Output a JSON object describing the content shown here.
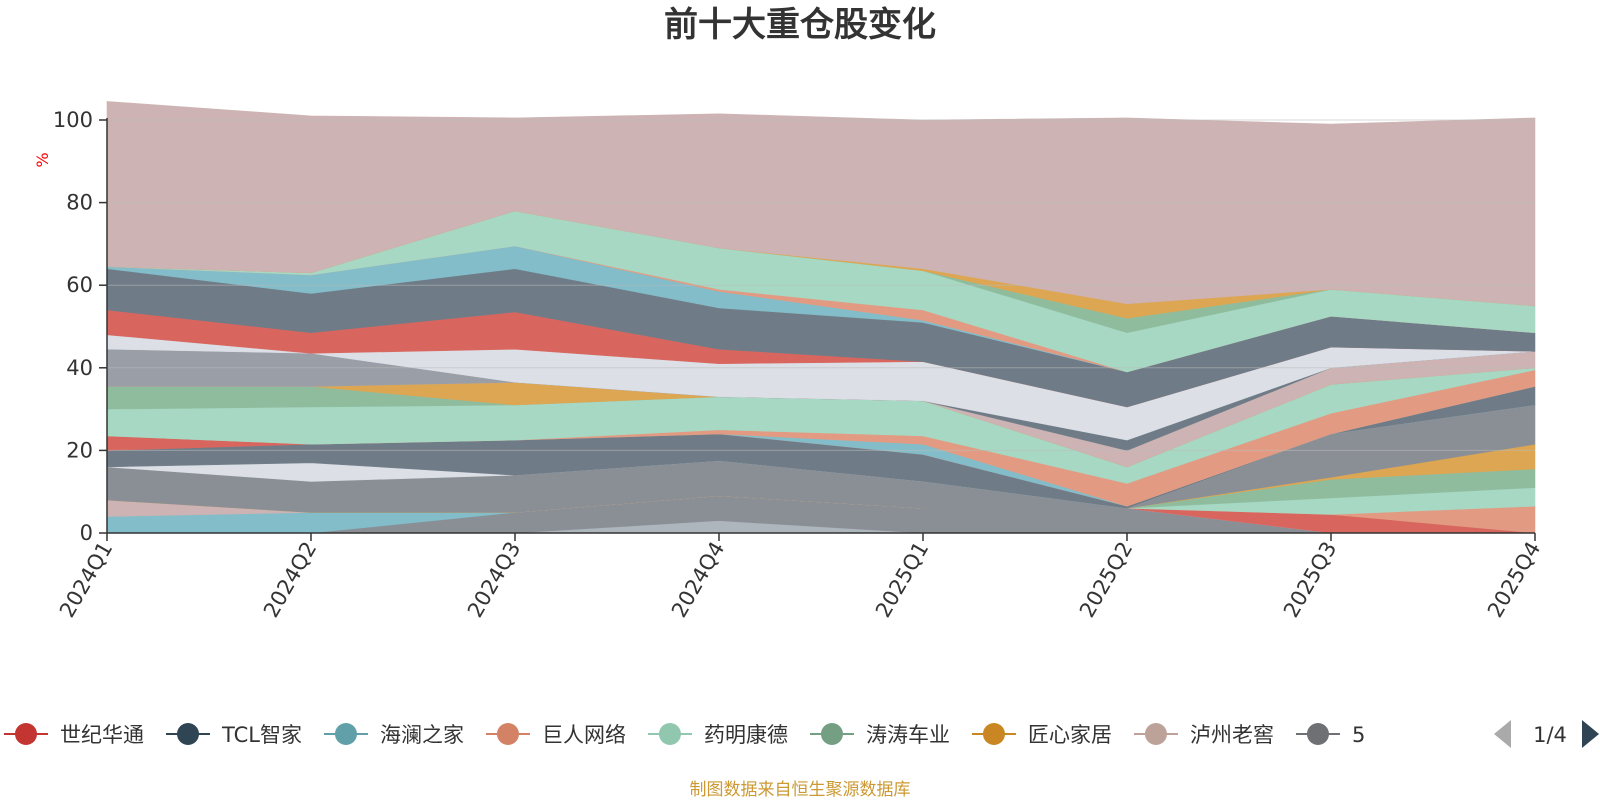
{
  "chart_data": {
    "type": "area",
    "stacked": true,
    "title": "前十大重仓股变化",
    "ylabel": "%",
    "ylim": [
      0,
      100
    ],
    "yticks": [
      0,
      20,
      40,
      60,
      80,
      100
    ],
    "categories": [
      "2024Q1",
      "2024Q2",
      "2024Q3",
      "2024Q4",
      "2025Q1",
      "2025Q2",
      "2025Q3",
      "2025Q4"
    ],
    "grid": true,
    "legend_position": "bottom",
    "series": [
      {
        "color": "#ADB5BD",
        "values": [
          0,
          0,
          0,
          3,
          0,
          0,
          0,
          0
        ]
      },
      {
        "color": "#8A8F96",
        "values": [
          0,
          0,
          5,
          6,
          6,
          6,
          0,
          0
        ]
      },
      {
        "color": "#83BDC9",
        "values": [
          4,
          5,
          0,
          0,
          0,
          0,
          0,
          0
        ]
      },
      {
        "color": "#CDB3B3",
        "values": [
          4,
          0,
          0,
          0,
          0,
          0,
          0,
          0
        ]
      },
      {
        "color": "#D8665E",
        "values": [
          0,
          0,
          0,
          0,
          0,
          0,
          4.5,
          0
        ]
      },
      {
        "color": "#E29B82",
        "values": [
          0,
          0,
          0,
          0,
          0,
          0,
          0,
          6.5
        ]
      },
      {
        "color": "#A6D8C3",
        "values": [
          0,
          0,
          0,
          0,
          0,
          0,
          4,
          4.5
        ]
      },
      {
        "color": "#8FBC9D",
        "values": [
          0,
          0,
          0,
          0,
          0,
          0,
          4.5,
          4.5
        ]
      },
      {
        "color": "#DDA652",
        "values": [
          0,
          0,
          0,
          0,
          0,
          0,
          0.5,
          6
        ]
      },
      {
        "color": "#8A8F96",
        "values": [
          8,
          7.5,
          9,
          8.5,
          6.5,
          0,
          10.5,
          9.5
        ]
      },
      {
        "color": "#DCDFE6",
        "values": [
          0,
          4.5,
          0,
          0,
          0,
          0,
          0,
          0
        ]
      },
      {
        "color": "#6F7C87",
        "values": [
          4,
          4.5,
          8.5,
          6.5,
          6.5,
          0.5,
          0,
          4.5
        ]
      },
      {
        "color": "#D8665E",
        "values": [
          3.5,
          0,
          0,
          0,
          0,
          0,
          0,
          0
        ]
      },
      {
        "color": "#83BDC9",
        "values": [
          0,
          0,
          0,
          0,
          2.5,
          0,
          0,
          0
        ]
      },
      {
        "color": "#E29B82",
        "values": [
          0,
          0,
          0,
          1,
          2,
          5.5,
          5,
          4
        ]
      },
      {
        "color": "#A6D8C3",
        "values": [
          6.5,
          9,
          8.5,
          8,
          8.5,
          4,
          7,
          0.5
        ]
      },
      {
        "color": "#8FBC9D",
        "values": [
          5.5,
          5,
          0,
          0,
          0,
          0,
          0,
          0
        ]
      },
      {
        "color": "#DDA652",
        "values": [
          0,
          0,
          5.5,
          0,
          0,
          0,
          0,
          0
        ]
      },
      {
        "color": "#CDB3B3",
        "values": [
          0,
          0,
          0,
          0,
          0,
          4,
          4,
          4
        ]
      },
      {
        "color": "#9A9EA6",
        "values": [
          9,
          8,
          0,
          0,
          0,
          0,
          0,
          0
        ]
      },
      {
        "color": "#6F7C87",
        "values": [
          0,
          0,
          0,
          0,
          0,
          2.5,
          0,
          0
        ]
      },
      {
        "color": "#DCDFE6",
        "values": [
          3.5,
          0,
          8,
          8,
          9.5,
          8,
          5,
          0
        ]
      },
      {
        "color": "#D8665E",
        "values": [
          6,
          5,
          9,
          3.5,
          0,
          0,
          0,
          0
        ]
      },
      {
        "color": "#6F7C87",
        "values": [
          10,
          9.5,
          10.5,
          10,
          9.5,
          8.5,
          7.5,
          4.5
        ]
      },
      {
        "color": "#83BDC9",
        "values": [
          0.5,
          4.5,
          5.5,
          4,
          0.5,
          0,
          0,
          0
        ]
      },
      {
        "color": "#E29B82",
        "values": [
          0,
          0,
          0,
          0.5,
          2.5,
          0,
          0,
          0
        ]
      },
      {
        "color": "#A6D8C3",
        "values": [
          0,
          0.5,
          8.5,
          10,
          9.5,
          9.5,
          6.5,
          6.5
        ]
      },
      {
        "color": "#8FBC9D",
        "values": [
          0,
          0,
          0,
          0,
          0,
          3.5,
          0,
          0
        ]
      },
      {
        "color": "#DDA652",
        "values": [
          0,
          0,
          0,
          0,
          0.5,
          3.5,
          0,
          0
        ]
      },
      {
        "color": "#CDB3B3",
        "values": [
          40,
          38,
          22.5,
          32.5,
          36,
          45,
          40,
          45.5
        ]
      }
    ]
  },
  "legend": {
    "items": [
      {
        "label": "世纪华通",
        "color": "#C23531"
      },
      {
        "label": "TCL智家",
        "color": "#2F4554"
      },
      {
        "label": "海澜之家",
        "color": "#61A0A8"
      },
      {
        "label": "巨人网络",
        "color": "#D48265"
      },
      {
        "label": "药明康德",
        "color": "#91C7AE"
      },
      {
        "label": "涛涛车业",
        "color": "#749F83"
      },
      {
        "label": "匠心家居",
        "color": "#CA8622"
      },
      {
        "label": "泸州老窖",
        "color": "#BDA29A"
      },
      {
        "label": "5",
        "color": "#6E7074"
      }
    ],
    "page": "1/4"
  },
  "source_note": "制图数据来自恒生聚源数据库",
  "colors": {
    "unit": "#FF0000",
    "source": "#CC9933",
    "axis": "#333333",
    "grid": "#BBBBBB",
    "pager_active": "#2F4554",
    "pager_inactive": "#AAAAAA"
  }
}
